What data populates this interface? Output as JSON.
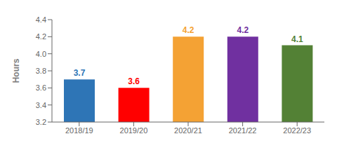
{
  "chart_data": {
    "type": "bar",
    "categories": [
      "2018/19",
      "2019/20",
      "2020/21",
      "2021/22",
      "2022/23"
    ],
    "values": [
      3.7,
      3.6,
      4.2,
      4.2,
      4.1
    ],
    "colors": [
      "#2E75B6",
      "#FF0000",
      "#F4A234",
      "#7030A0",
      "#538135"
    ],
    "ylabel": "Hours",
    "ylim": [
      3.2,
      4.4
    ],
    "yticks": [
      3.2,
      3.4,
      3.6,
      3.8,
      {
        "value": 4.0,
        "label": "4.0"
      },
      4.2,
      4.4
    ],
    "data_labels": true,
    "grid": false
  }
}
